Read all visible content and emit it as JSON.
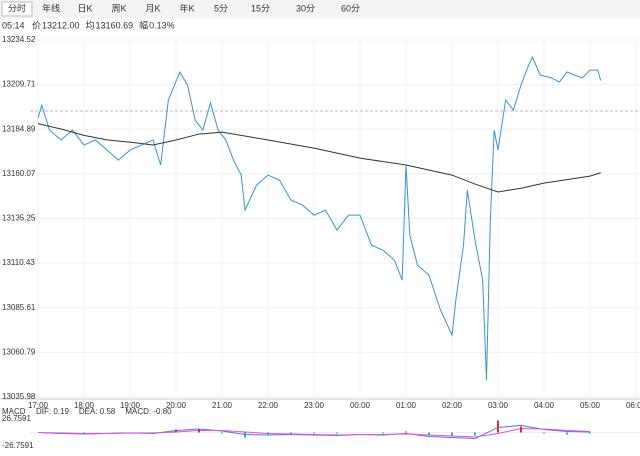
{
  "tabs": [
    "分时",
    "年线",
    "日K",
    "周K",
    "月K",
    "年K",
    "5分",
    "15分",
    "30分",
    "60分"
  ],
  "info": {
    "time": "05:14",
    "items": [
      {
        "label": "价",
        "value": "13212.00"
      },
      {
        "label": "均",
        "value": "13160.69"
      },
      {
        "label": "幅",
        "value": "0.13%"
      }
    ]
  },
  "chart_data": {
    "type": "line",
    "ylim": [
      13035.98,
      13234.52
    ],
    "yticks": [
      13234.52,
      13209.71,
      13184.89,
      13160.07,
      13135.25,
      13110.43,
      13085.61,
      13060.79,
      13035.98
    ],
    "xlim": [
      "17:00",
      "06:00"
    ],
    "xticks": [
      "17:00",
      "18:00",
      "19:00",
      "20:00",
      "21:00",
      "22:00",
      "23:00",
      "00:00",
      "01:00",
      "02:00",
      "03:00",
      "04:00",
      "05:00",
      "06:00"
    ],
    "grid": true,
    "reference_line": 13195,
    "up_color": "#e03030",
    "down_color": "#1a9a1a",
    "series": [
      {
        "name": "价",
        "color": "#3a93d0",
        "x": [
          "17:00",
          "17:05",
          "17:15",
          "17:30",
          "17:45",
          "18:00",
          "18:15",
          "18:30",
          "18:45",
          "19:00",
          "19:15",
          "19:30",
          "19:40",
          "19:50",
          "20:05",
          "20:15",
          "20:25",
          "20:35",
          "20:45",
          "20:55",
          "21:05",
          "21:15",
          "21:25",
          "21:30",
          "21:45",
          "22:00",
          "22:15",
          "22:30",
          "22:45",
          "23:00",
          "23:15",
          "23:30",
          "23:45",
          "00:00",
          "00:15",
          "00:30",
          "00:45",
          "00:55",
          "01:00",
          "01:05",
          "01:15",
          "01:30",
          "01:45",
          "02:00",
          "02:05",
          "02:15",
          "02:20",
          "02:30",
          "02:40",
          "02:45",
          "02:50",
          "02:55",
          "03:00",
          "03:10",
          "03:20",
          "03:30",
          "03:40",
          "03:45",
          "03:55",
          "04:10",
          "04:20",
          "04:30",
          "04:40",
          "04:50",
          "05:00",
          "05:10",
          "05:14"
        ],
        "values": [
          13191.1,
          13198.3,
          13184.4,
          13178.9,
          13184.4,
          13176.1,
          13178.9,
          13173.3,
          13167.7,
          13173.3,
          13176.1,
          13178.9,
          13165,
          13201.1,
          13216.7,
          13209.5,
          13190,
          13184.4,
          13199.5,
          13184.4,
          13178.9,
          13167.7,
          13159.4,
          13139.9,
          13153.8,
          13159.4,
          13156.6,
          13145.5,
          13142.7,
          13137.1,
          13139.9,
          13128.8,
          13137.1,
          13137.1,
          13120.4,
          13117.6,
          13112,
          13101,
          13165,
          13126,
          13109.3,
          13103.7,
          13084.3,
          13070.4,
          13089.8,
          13120.4,
          13151,
          13123.2,
          13101,
          13045.3,
          13134.3,
          13184.4,
          13173.3,
          13201.1,
          13195.5,
          13209.5,
          13220.6,
          13225,
          13215,
          13213.4,
          13211.1,
          13216.7,
          13215,
          13213.4,
          13217.8,
          13217.8,
          13212
        ]
      },
      {
        "name": "均",
        "color": "#333333",
        "x": [
          "17:00",
          "17:30",
          "18:00",
          "18:30",
          "19:00",
          "19:30",
          "20:00",
          "20:30",
          "21:00",
          "22:00",
          "23:00",
          "00:00",
          "01:00",
          "02:00",
          "02:30",
          "03:00",
          "03:30",
          "04:00",
          "05:00",
          "05:14"
        ],
        "values": [
          13188,
          13185,
          13181.5,
          13179,
          13177.7,
          13176.1,
          13178.9,
          13182.2,
          13183.3,
          13178.9,
          13174.4,
          13168.8,
          13165,
          13159.4,
          13154.4,
          13150,
          13152.1,
          13154.9,
          13158.8,
          13160.69
        ]
      }
    ],
    "macd": {
      "type": "macd",
      "title": "MACD",
      "readouts": [
        "DIF: 0.19",
        "DEA: 0.58",
        "MACD: -0.80"
      ],
      "ylim": [
        -26.7591,
        26.7591
      ],
      "yticks": [
        26.7591,
        -26.7591
      ],
      "x": [
        "17:00",
        "17:30",
        "18:00",
        "18:30",
        "19:00",
        "19:30",
        "20:00",
        "20:30",
        "21:00",
        "21:30",
        "22:00",
        "22:30",
        "23:00",
        "23:30",
        "00:00",
        "00:30",
        "01:00",
        "01:30",
        "02:00",
        "02:30",
        "03:00",
        "03:30",
        "04:00",
        "04:30",
        "05:00"
      ],
      "series": [
        {
          "name": "DIF",
          "color": "#6a6ae0",
          "values": [
            0,
            -2,
            -3,
            -2,
            -1,
            -2,
            4,
            7,
            3,
            -4,
            -5,
            -4,
            -5,
            -6,
            -4,
            -5,
            -2,
            -8,
            -10,
            -12,
            10,
            14,
            6,
            2,
            1
          ]
        },
        {
          "name": "DEA",
          "color": "#d45ad4",
          "values": [
            0,
            -1,
            -2,
            -2,
            -1,
            -1,
            1,
            4,
            4,
            1,
            -2,
            -3,
            -4,
            -5,
            -4,
            -4,
            -3,
            -5,
            -7,
            -9,
            -2,
            8,
            7,
            4,
            2
          ]
        },
        {
          "name": "MACD",
          "type": "bar",
          "values": [
            0,
            -2,
            -2,
            0,
            0,
            -2,
            6,
            6,
            -2,
            -10,
            -6,
            -2,
            -2,
            -2,
            0,
            -2,
            2,
            -6,
            -6,
            -6,
            24,
            12,
            -2,
            -4,
            -2
          ]
        }
      ]
    }
  }
}
